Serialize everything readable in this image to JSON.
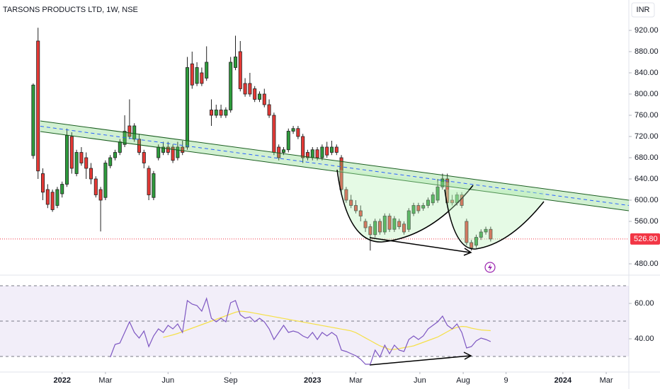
{
  "chart_data": {
    "type": "candlestick",
    "title": "TARSONS PRODUCTS LTD, 1W, NSE",
    "currency": "INR",
    "up_color": "#2e9b3c",
    "down_color": "#e53935",
    "ohlc": [
      [
        684,
        820,
        678,
        817
      ],
      [
        900,
        925,
        640,
        655
      ],
      [
        650,
        660,
        600,
        615
      ],
      [
        620,
        630,
        585,
        592
      ],
      [
        615,
        620,
        578,
        582
      ],
      [
        590,
        625,
        585,
        620
      ],
      [
        612,
        635,
        605,
        630
      ],
      [
        630,
        735,
        625,
        722
      ],
      [
        720,
        728,
        650,
        660
      ],
      [
        650,
        695,
        645,
        690
      ],
      [
        690,
        700,
        665,
        670
      ],
      [
        680,
        690,
        640,
        660
      ],
      [
        660,
        670,
        630,
        640
      ],
      [
        640,
        645,
        605,
        610
      ],
      [
        620,
        625,
        541,
        600
      ],
      [
        605,
        675,
        600,
        670
      ],
      [
        665,
        685,
        660,
        680
      ],
      [
        680,
        695,
        675,
        690
      ],
      [
        690,
        715,
        685,
        710
      ],
      [
        705,
        760,
        700,
        730
      ],
      [
        740,
        790,
        715,
        720
      ],
      [
        715,
        745,
        710,
        740
      ],
      [
        715,
        725,
        685,
        690
      ],
      [
        690,
        695,
        660,
        670
      ],
      [
        660,
        665,
        600,
        610
      ],
      [
        605,
        655,
        600,
        650
      ],
      [
        680,
        705,
        675,
        700
      ],
      [
        690,
        710,
        685,
        700
      ],
      [
        700,
        710,
        685,
        690
      ],
      [
        700,
        705,
        670,
        675
      ],
      [
        680,
        710,
        675,
        700
      ],
      [
        700,
        712,
        685,
        690
      ],
      [
        700,
        870,
        695,
        850
      ],
      [
        857,
        880,
        810,
        817
      ],
      [
        820,
        860,
        815,
        850
      ],
      [
        840,
        850,
        815,
        820
      ],
      [
        830,
        890,
        825,
        860
      ],
      [
        770,
        790,
        740,
        760
      ],
      [
        760,
        780,
        755,
        770
      ],
      [
        770,
        780,
        755,
        760
      ],
      [
        760,
        775,
        755,
        770
      ],
      [
        770,
        870,
        765,
        860
      ],
      [
        850,
        910,
        845,
        870
      ],
      [
        880,
        900,
        805,
        810
      ],
      [
        820,
        830,
        795,
        800
      ],
      [
        820,
        840,
        795,
        800
      ],
      [
        810,
        815,
        785,
        790
      ],
      [
        790,
        805,
        785,
        800
      ],
      [
        800,
        810,
        775,
        780
      ],
      [
        780,
        790,
        755,
        760
      ],
      [
        760,
        765,
        685,
        690
      ],
      [
        700,
        705,
        675,
        680
      ],
      [
        690,
        700,
        685,
        695
      ],
      [
        695,
        735,
        690,
        730
      ],
      [
        730,
        740,
        725,
        735
      ],
      [
        735,
        740,
        715,
        720
      ],
      [
        720,
        725,
        670,
        680
      ],
      [
        690,
        695,
        675,
        680
      ],
      [
        680,
        700,
        675,
        695
      ],
      [
        695,
        700,
        675,
        680
      ],
      [
        680,
        705,
        675,
        700
      ],
      [
        700,
        710,
        680,
        685
      ],
      [
        690,
        712,
        685,
        700
      ],
      [
        700,
        705,
        685,
        690
      ],
      [
        680,
        685,
        610,
        620
      ],
      [
        620,
        625,
        595,
        600
      ],
      [
        600,
        610,
        585,
        590
      ],
      [
        590,
        600,
        575,
        580
      ],
      [
        580,
        590,
        560,
        570
      ],
      [
        560,
        565,
        540,
        548
      ],
      [
        550,
        555,
        505,
        535
      ],
      [
        535,
        565,
        530,
        560
      ],
      [
        560,
        565,
        535,
        540
      ],
      [
        540,
        575,
        535,
        570
      ],
      [
        570,
        575,
        540,
        545
      ],
      [
        545,
        570,
        540,
        565
      ],
      [
        560,
        565,
        545,
        550
      ],
      [
        555,
        560,
        535,
        540
      ],
      [
        545,
        585,
        540,
        580
      ],
      [
        575,
        595,
        570,
        590
      ],
      [
        590,
        595,
        575,
        580
      ],
      [
        585,
        595,
        580,
        590
      ],
      [
        590,
        605,
        585,
        600
      ],
      [
        595,
        615,
        590,
        610
      ],
      [
        600,
        640,
        595,
        625
      ],
      [
        625,
        650,
        620,
        640
      ],
      [
        640,
        650,
        590,
        595
      ],
      [
        600,
        610,
        590,
        595
      ],
      [
        595,
        615,
        590,
        610
      ],
      [
        610,
        615,
        585,
        590
      ],
      [
        560,
        565,
        515,
        520
      ],
      [
        520,
        525,
        505,
        510
      ],
      [
        515,
        535,
        510,
        530
      ],
      [
        530,
        545,
        525,
        540
      ],
      [
        540,
        550,
        535,
        545
      ],
      [
        545,
        550,
        522,
        526.8
      ]
    ],
    "last_price": {
      "value": 526.8,
      "label": "526.80"
    },
    "last_price_color": "#f23645",
    "xlim": [
      -6.9,
      123.7
    ],
    "xticks": [
      {
        "value": 6,
        "label": "2022"
      },
      {
        "value": 15,
        "label": "Mar"
      },
      {
        "value": 28,
        "label": "Jun"
      },
      {
        "value": 41,
        "label": "Sep"
      },
      {
        "value": 58,
        "label": "2023"
      },
      {
        "value": 67,
        "label": "Mar"
      },
      {
        "value": 80.3,
        "label": "Jun"
      },
      {
        "value": 89.3,
        "label": "Aug"
      },
      {
        "value": 98.2,
        "label": "9"
      },
      {
        "value": 110,
        "label": "2024"
      },
      {
        "value": 119,
        "label": "Mar"
      }
    ],
    "ylim": [
      460,
      977.3
    ],
    "yticks": [
      {
        "value": 920,
        "label": "920.00"
      },
      {
        "value": 880,
        "label": "880.00"
      },
      {
        "value": 840,
        "label": "840.00"
      },
      {
        "value": 800,
        "label": "800.00"
      },
      {
        "value": 760,
        "label": "760.00"
      },
      {
        "value": 720,
        "label": "720.00"
      },
      {
        "value": 680,
        "label": "680.00"
      },
      {
        "value": 640,
        "label": "640.00"
      },
      {
        "value": 600,
        "label": "600.00"
      },
      {
        "value": 560,
        "label": "560.00"
      },
      {
        "value": 480,
        "label": "480.00"
      }
    ],
    "grid": false,
    "rsi": {
      "color": "#7e57c2",
      "ma_color": "#f5e04a",
      "values": [
        null,
        null,
        null,
        null,
        null,
        null,
        null,
        null,
        null,
        null,
        null,
        null,
        null,
        null,
        null,
        null,
        29.6,
        36.8,
        37.6,
        43.6,
        49.6,
        43.6,
        40.4,
        44.4,
        35.6,
        41.6,
        45.6,
        43.6,
        47.6,
        45.6,
        48.4,
        43.6,
        61.6,
        59.6,
        58.8,
        55.6,
        62.8,
        51.6,
        49.6,
        51.6,
        49.6,
        60.4,
        61.6,
        53.6,
        51.6,
        52.4,
        49.6,
        51.6,
        49.6,
        45.6,
        39.6,
        43.6,
        47.6,
        43.6,
        44.4,
        43.6,
        41.6,
        40.4,
        43.6,
        39.6,
        43.6,
        41.6,
        43.6,
        41.6,
        33.6,
        32.8,
        31.6,
        30.4,
        28.4,
        25.6,
        25.6,
        33.6,
        29.6,
        36.4,
        31.6,
        36.4,
        33.6,
        32.8,
        39.6,
        41.6,
        39.6,
        41.6,
        45.6,
        47.6,
        49.6,
        52.8,
        47.6,
        45.6,
        48.4,
        43.6,
        34.8,
        35.6,
        38.8,
        40.4,
        39.6,
        38.4
      ],
      "ma": [
        null,
        null,
        null,
        null,
        null,
        null,
        null,
        null,
        null,
        null,
        null,
        null,
        null,
        null,
        null,
        null,
        null,
        null,
        null,
        null,
        null,
        null,
        null,
        null,
        null,
        null,
        null,
        40.8,
        41.5,
        42.2,
        43,
        44,
        45,
        46,
        47,
        48,
        49,
        50,
        51,
        52,
        53,
        54,
        55,
        55.6,
        55.4,
        55,
        54.5,
        54,
        53.5,
        53,
        52.5,
        52,
        51.5,
        51,
        50.5,
        50,
        49.5,
        49,
        48.5,
        48,
        47.5,
        47,
        46.5,
        46,
        45.5,
        45,
        44.5,
        43.5,
        42,
        40.5,
        39,
        37.5,
        36,
        35,
        34,
        34,
        34.5,
        35,
        35.5,
        36,
        37,
        38,
        39,
        40,
        41,
        42.5,
        44,
        45.5,
        46.5,
        47,
        46.8,
        46,
        45.5,
        45,
        44.8,
        44.6
      ],
      "levels": [
        70,
        50,
        30
      ],
      "ylim": [
        21.6,
        74.8
      ],
      "yticks": [
        {
          "value": 60,
          "label": "60.00"
        },
        {
          "value": 40,
          "label": "40.00"
        }
      ]
    }
  }
}
